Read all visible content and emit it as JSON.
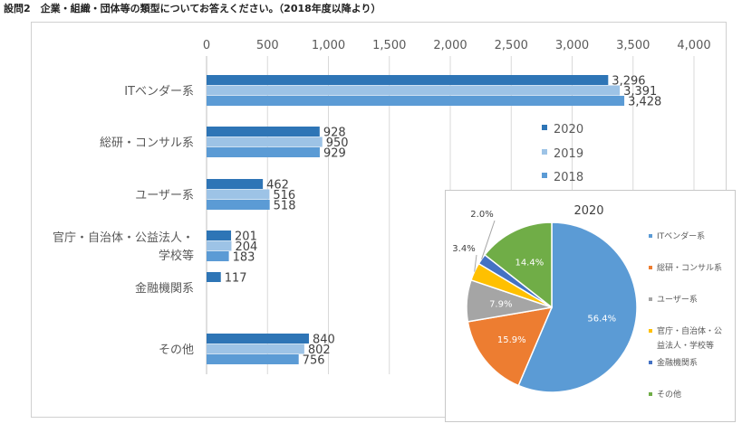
{
  "title": "設問2　企業・組織・団体等の類型についてお答えください。（2018年度以降より）",
  "chart_data": [
    {
      "type": "bar",
      "orientation": "horizontal",
      "categories": [
        "ITベンダー系",
        "総研・コンサル系",
        "ユーザー系",
        "官庁・自治体・公益法人・学校等",
        "金融機関系",
        "その他"
      ],
      "category_lines": [
        [
          "ITベンダー系"
        ],
        [
          "総研・コンサル系"
        ],
        [
          "ユーザー系"
        ],
        [
          "官庁・自治体・公益法人・",
          "学校等"
        ],
        [
          "金融機関系"
        ],
        [
          "その他"
        ]
      ],
      "series": [
        {
          "name": "2020",
          "color": "#2e75b6",
          "values": [
            3296,
            928,
            462,
            201,
            117,
            840
          ],
          "labels": [
            "3,296",
            "928",
            "462",
            "201",
            "117",
            "840"
          ]
        },
        {
          "name": "2019",
          "color": "#9dc3e6",
          "values": [
            3391,
            950,
            516,
            204,
            null,
            802
          ],
          "labels": [
            "3,391",
            "950",
            "516",
            "204",
            "",
            "802"
          ]
        },
        {
          "name": "2018",
          "color": "#5b9bd5",
          "values": [
            3428,
            929,
            518,
            183,
            null,
            756
          ],
          "labels": [
            "3,428",
            "929",
            "518",
            "183",
            "",
            "756"
          ]
        }
      ],
      "xlim": [
        0,
        4000
      ],
      "xticks": [
        0,
        500,
        1000,
        1500,
        2000,
        2500,
        3000,
        3500,
        4000
      ],
      "xtick_labels": [
        "0",
        "500",
        "1,000",
        "1,500",
        "2,000",
        "2,500",
        "3,000",
        "3,500",
        "4,000"
      ],
      "axis_position": "top",
      "grid": true,
      "legend": "right"
    },
    {
      "type": "pie",
      "title": "2020",
      "categories": [
        "ITベンダー系",
        "総研・コンサル系",
        "ユーザー系",
        "官庁・自治体・公益法人・学校等",
        "金融機関系",
        "その他"
      ],
      "legend_lines": [
        [
          "ITベンダー系"
        ],
        [
          "総研・コンサル系"
        ],
        [
          "ユーザー系"
        ],
        [
          "官庁・自治体・公",
          "益法人・学校等"
        ],
        [
          "金融機関系"
        ],
        [
          "その他"
        ]
      ],
      "values": [
        56.4,
        15.9,
        7.9,
        3.4,
        2.0,
        14.4
      ],
      "labels": [
        "56.4%",
        "15.9%",
        "7.9%",
        "3.4%",
        "2.0%",
        "14.4%"
      ],
      "colors": [
        "#5b9bd5",
        "#ed7d31",
        "#a5a5a5",
        "#ffc000",
        "#4472c4",
        "#70ad47"
      ],
      "legend": "right"
    }
  ]
}
